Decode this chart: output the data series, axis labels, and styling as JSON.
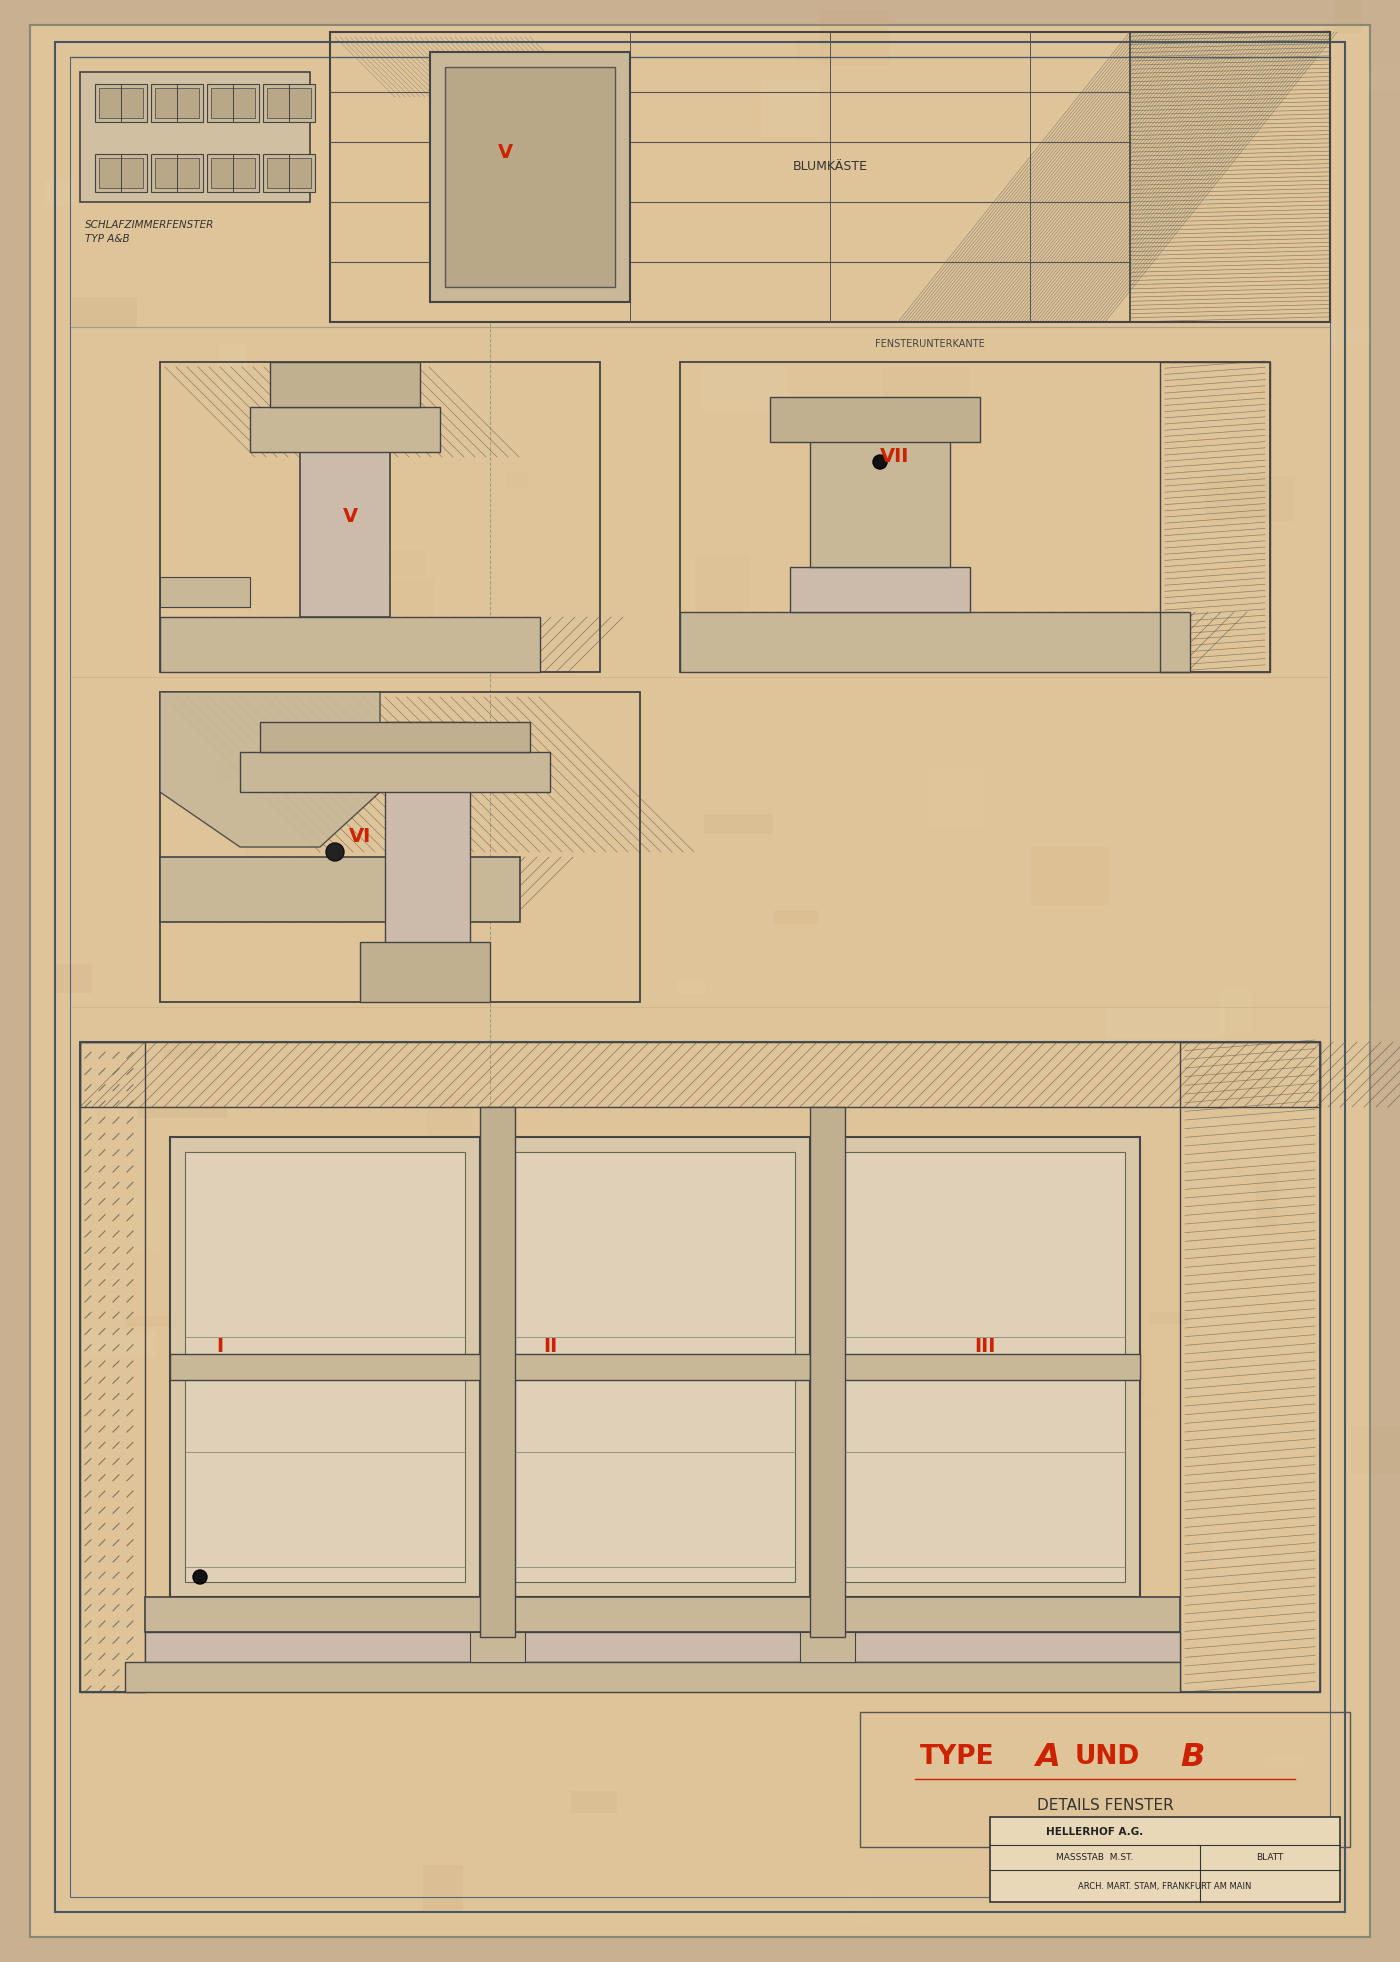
{
  "bg_color": "#c8b090",
  "paper_color": "#dfc49a",
  "paper_edge_color": "#888877",
  "border_color": "#445566",
  "line_color": "#555555",
  "red_color": "#cc2200",
  "dark_color": "#333333",
  "hatch_color": "#666655",
  "title_main": "TYPE A UND B",
  "title_sub": "DETAILS FENSTER",
  "label_top_left": "SCHLAFZIMMERFENSTER\nTYP A&B",
  "label_blumenkasten": "BLUMKÄSTE",
  "label_fenster": "FENSTERUNTERKANTE",
  "info_line1": "HELLERHOF A.G.",
  "info_line2": "MASSSTAB  M.ST.",
  "info_line3": "BLATT",
  "info_line4": "ARCH. MART. STAM, FRANKFURT AM MAIN",
  "roman_labels": [
    "I",
    "II",
    "III",
    "V",
    "VI",
    "VII"
  ]
}
